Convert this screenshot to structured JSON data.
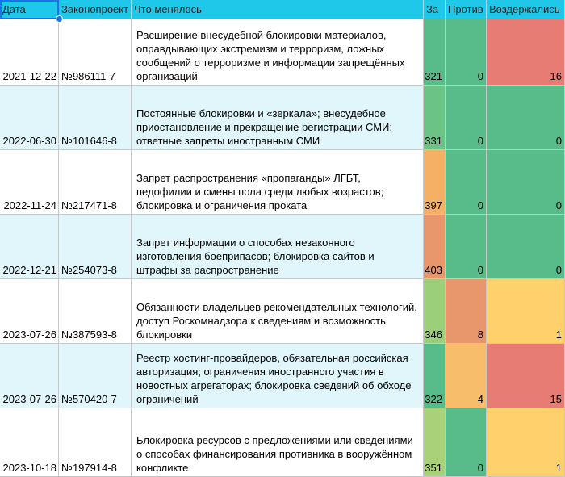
{
  "header": {
    "date": "Дата",
    "bill": "Законопроект",
    "changes": "Что менялось",
    "for": "За",
    "against": "Против",
    "abstained": "Воздержались"
  },
  "rows": [
    {
      "date": "2021-12-22",
      "bill": "№986111-7",
      "changes": "Расширение внесудебной блокировки материалов, оправдывающих экстремизм и терроризм, ложных сообщений о терроризме и информации запрещённых организаций",
      "for": "321",
      "against": "0",
      "abstained": "16",
      "for_color": "#57bb8a",
      "against_color": "#57bb8a",
      "abstained_color": "#e67c73"
    },
    {
      "date": "2022-06-30",
      "bill": "№101646-8",
      "changes": "Постоянные блокировки и «зеркала»; внесудебное приостановление и прекращение регистрации СМИ; ответные запреты иностранным СМИ",
      "for": "331",
      "against": "0",
      "abstained": "0",
      "for_color": "#6cc386",
      "against_color": "#57bb8a",
      "abstained_color": "#57bb8a"
    },
    {
      "date": "2022-11-24",
      "bill": "№217471-8",
      "changes": "Запрет распространения «пропаганды» ЛГБТ, педофилии и смены пола среди любых возрастов; блокировка и ограничения проката",
      "for": "397",
      "against": "0",
      "abstained": "0",
      "for_color": "#f4b166",
      "against_color": "#57bb8a",
      "abstained_color": "#57bb8a"
    },
    {
      "date": "2022-12-21",
      "bill": "№254073-8",
      "changes": "Запрет информации о способах незаконного изготовления боеприпасов; блокировка сайтов и штрафы за распространение",
      "for": "403",
      "against": "0",
      "abstained": "0",
      "for_color": "#e8976d",
      "against_color": "#57bb8a",
      "abstained_color": "#57bb8a"
    },
    {
      "date": "2023-07-26",
      "bill": "№387593-8",
      "changes": "Обязанности владельцев рекомендательных технологий, доступ Роскомнадзора к сведениям и возможность блокировки",
      "for": "346",
      "against": "8",
      "abstained": "1",
      "for_color": "#9bcf7a",
      "against_color": "#e8976d",
      "abstained_color": "#fed16c"
    },
    {
      "date": "2023-07-26",
      "bill": "№570420-7",
      "changes": "Реестр хостинг-провайдеров, обязательная российская авторизация; ограничения иностранного участия в новостных агрегаторах; блокировка сведений об обходе ограничений",
      "for": "322",
      "against": "4",
      "abstained": "15",
      "for_color": "#57bb8a",
      "against_color": "#f7bd6b",
      "abstained_color": "#e67c73"
    },
    {
      "date": "2023-10-18",
      "bill": "№197914-8",
      "changes": "Блокировка ресурсов с предложениями или сведениями о способах финансирования противника в вооружённом конфликте",
      "for": "351",
      "against": "0",
      "abstained": "1",
      "for_color": "#a9d179",
      "against_color": "#57bb8a",
      "abstained_color": "#fed16c"
    }
  ]
}
